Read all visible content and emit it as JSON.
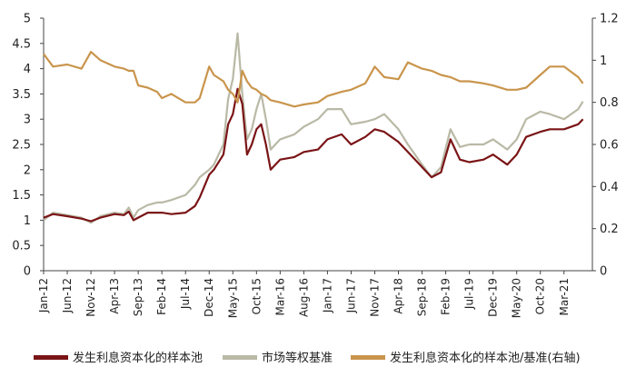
{
  "chart_data": {
    "type": "line",
    "axes": {
      "x_ticks": [
        "Jan-12",
        "Jun-12",
        "Nov-12",
        "Apr-13",
        "Sep-13",
        "Feb-14",
        "Jul-14",
        "Dec-14",
        "May-15",
        "Oct-15",
        "Mar-16",
        "Aug-16",
        "Jan-17",
        "Jun-17",
        "Nov-17",
        "Apr-18",
        "Sep-18",
        "Feb-19",
        "Jul-19",
        "Dec-19",
        "May-20",
        "Oct-20",
        "Mar-21"
      ],
      "y_left": {
        "ylim": [
          0,
          5
        ],
        "ticks": [
          "0",
          "0.5",
          "1",
          "1.5",
          "2",
          "2.5",
          "3",
          "3.5",
          "4",
          "4.5",
          "5"
        ]
      },
      "y_right": {
        "ylim": [
          0,
          1.2
        ],
        "ticks": [
          "0",
          "0.2",
          "0.4",
          "0.6",
          "0.8",
          "1",
          "1.2"
        ]
      },
      "grid": false
    },
    "legend_position": "bottom",
    "series": [
      {
        "name": "发生利息资本化的样本池",
        "axis": "left",
        "color": "#7a1416",
        "points": [
          [
            "Jan-12",
            1.05
          ],
          [
            "Mar-12",
            1.12
          ],
          [
            "Jun-12",
            1.08
          ],
          [
            "Sep-12",
            1.03
          ],
          [
            "Nov-12",
            0.98
          ],
          [
            "Jan-13",
            1.05
          ],
          [
            "Apr-13",
            1.12
          ],
          [
            "Jun-13",
            1.1
          ],
          [
            "Jul-13",
            1.17
          ],
          [
            "Aug-13",
            1.0
          ],
          [
            "Sep-13",
            1.05
          ],
          [
            "Nov-13",
            1.15
          ],
          [
            "Jan-14",
            1.15
          ],
          [
            "Feb-14",
            1.15
          ],
          [
            "Apr-14",
            1.12
          ],
          [
            "Jul-14",
            1.15
          ],
          [
            "Sep-14",
            1.28
          ],
          [
            "Oct-14",
            1.45
          ],
          [
            "Dec-14",
            1.9
          ],
          [
            "Jan-15",
            2.0
          ],
          [
            "Mar-15",
            2.3
          ],
          [
            "Apr-15",
            2.9
          ],
          [
            "May-15",
            3.1
          ],
          [
            "Jun-15",
            3.6
          ],
          [
            "Jul-15",
            3.3
          ],
          [
            "Aug-15",
            2.3
          ],
          [
            "Sep-15",
            2.5
          ],
          [
            "Oct-15",
            2.8
          ],
          [
            "Nov-15",
            2.9
          ],
          [
            "Dec-15",
            2.5
          ],
          [
            "Jan-16",
            2.0
          ],
          [
            "Mar-16",
            2.2
          ],
          [
            "Jun-16",
            2.25
          ],
          [
            "Aug-16",
            2.35
          ],
          [
            "Nov-16",
            2.4
          ],
          [
            "Jan-17",
            2.6
          ],
          [
            "Apr-17",
            2.7
          ],
          [
            "Jun-17",
            2.5
          ],
          [
            "Sep-17",
            2.65
          ],
          [
            "Nov-17",
            2.8
          ],
          [
            "Jan-18",
            2.75
          ],
          [
            "Apr-18",
            2.55
          ],
          [
            "Jun-18",
            2.35
          ],
          [
            "Sep-18",
            2.05
          ],
          [
            "Nov-18",
            1.85
          ],
          [
            "Jan-19",
            1.95
          ],
          [
            "Mar-19",
            2.6
          ],
          [
            "May-19",
            2.2
          ],
          [
            "Jul-19",
            2.15
          ],
          [
            "Oct-19",
            2.2
          ],
          [
            "Dec-19",
            2.3
          ],
          [
            "Mar-20",
            2.1
          ],
          [
            "May-20",
            2.3
          ],
          [
            "Jul-20",
            2.65
          ],
          [
            "Oct-20",
            2.75
          ],
          [
            "Dec-20",
            2.8
          ],
          [
            "Mar-21",
            2.8
          ],
          [
            "Jun-21",
            2.9
          ],
          [
            "Jul-21",
            3.0
          ]
        ]
      },
      {
        "name": "市场等权基准",
        "axis": "left",
        "color": "#b9b9a6",
        "points": [
          [
            "Jan-12",
            1.0
          ],
          [
            "Mar-12",
            1.15
          ],
          [
            "Jun-12",
            1.1
          ],
          [
            "Sep-12",
            1.05
          ],
          [
            "Nov-12",
            0.95
          ],
          [
            "Jan-13",
            1.08
          ],
          [
            "Apr-13",
            1.15
          ],
          [
            "Jun-13",
            1.12
          ],
          [
            "Jul-13",
            1.25
          ],
          [
            "Aug-13",
            1.05
          ],
          [
            "Sep-13",
            1.2
          ],
          [
            "Nov-13",
            1.3
          ],
          [
            "Jan-14",
            1.35
          ],
          [
            "Feb-14",
            1.35
          ],
          [
            "Apr-14",
            1.4
          ],
          [
            "Jul-14",
            1.5
          ],
          [
            "Sep-14",
            1.7
          ],
          [
            "Oct-14",
            1.85
          ],
          [
            "Dec-14",
            2.0
          ],
          [
            "Jan-15",
            2.1
          ],
          [
            "Mar-15",
            2.5
          ],
          [
            "Apr-15",
            3.4
          ],
          [
            "May-15",
            3.8
          ],
          [
            "Jun-15",
            4.7
          ],
          [
            "Jul-15",
            3.5
          ],
          [
            "Aug-15",
            2.6
          ],
          [
            "Sep-15",
            2.8
          ],
          [
            "Oct-15",
            3.2
          ],
          [
            "Nov-15",
            3.5
          ],
          [
            "Dec-15",
            3.0
          ],
          [
            "Jan-16",
            2.4
          ],
          [
            "Mar-16",
            2.6
          ],
          [
            "Jun-16",
            2.7
          ],
          [
            "Aug-16",
            2.85
          ],
          [
            "Nov-16",
            3.0
          ],
          [
            "Jan-17",
            3.2
          ],
          [
            "Apr-17",
            3.2
          ],
          [
            "Jun-17",
            2.9
          ],
          [
            "Sep-17",
            2.95
          ],
          [
            "Nov-17",
            3.0
          ],
          [
            "Jan-18",
            3.1
          ],
          [
            "Apr-18",
            2.8
          ],
          [
            "Jun-18",
            2.5
          ],
          [
            "Sep-18",
            2.1
          ],
          [
            "Nov-18",
            1.85
          ],
          [
            "Jan-19",
            2.05
          ],
          [
            "Mar-19",
            2.8
          ],
          [
            "May-19",
            2.45
          ],
          [
            "Jul-19",
            2.5
          ],
          [
            "Oct-19",
            2.5
          ],
          [
            "Dec-19",
            2.6
          ],
          [
            "Mar-20",
            2.4
          ],
          [
            "May-20",
            2.6
          ],
          [
            "Jul-20",
            3.0
          ],
          [
            "Oct-20",
            3.15
          ],
          [
            "Dec-20",
            3.1
          ],
          [
            "Mar-21",
            3.0
          ],
          [
            "Jun-21",
            3.2
          ],
          [
            "Jul-21",
            3.35
          ]
        ]
      },
      {
        "name": "发生利息资本化的样本池/基准(右轴)",
        "axis": "right",
        "color": "#c9954c",
        "points": [
          [
            "Jan-12",
            1.03
          ],
          [
            "Mar-12",
            0.97
          ],
          [
            "Jun-12",
            0.98
          ],
          [
            "Sep-12",
            0.96
          ],
          [
            "Nov-12",
            1.04
          ],
          [
            "Jan-13",
            1.0
          ],
          [
            "Apr-13",
            0.97
          ],
          [
            "Jun-13",
            0.96
          ],
          [
            "Jul-13",
            0.95
          ],
          [
            "Aug-13",
            0.95
          ],
          [
            "Sep-13",
            0.88
          ],
          [
            "Nov-13",
            0.87
          ],
          [
            "Jan-14",
            0.85
          ],
          [
            "Feb-14",
            0.82
          ],
          [
            "Apr-14",
            0.84
          ],
          [
            "Jul-14",
            0.8
          ],
          [
            "Sep-14",
            0.8
          ],
          [
            "Oct-14",
            0.82
          ],
          [
            "Dec-14",
            0.97
          ],
          [
            "Jan-15",
            0.93
          ],
          [
            "Mar-15",
            0.9
          ],
          [
            "Apr-15",
            0.86
          ],
          [
            "May-15",
            0.84
          ],
          [
            "Jun-15",
            0.8
          ],
          [
            "Jul-15",
            0.95
          ],
          [
            "Aug-15",
            0.9
          ],
          [
            "Sep-15",
            0.87
          ],
          [
            "Oct-15",
            0.86
          ],
          [
            "Nov-15",
            0.84
          ],
          [
            "Dec-15",
            0.83
          ],
          [
            "Jan-16",
            0.81
          ],
          [
            "Mar-16",
            0.8
          ],
          [
            "Jun-16",
            0.78
          ],
          [
            "Aug-16",
            0.79
          ],
          [
            "Nov-16",
            0.8
          ],
          [
            "Jan-17",
            0.83
          ],
          [
            "Apr-17",
            0.85
          ],
          [
            "Jun-17",
            0.86
          ],
          [
            "Sep-17",
            0.89
          ],
          [
            "Nov-17",
            0.97
          ],
          [
            "Jan-18",
            0.92
          ],
          [
            "Apr-18",
            0.91
          ],
          [
            "Jun-18",
            0.99
          ],
          [
            "Sep-18",
            0.96
          ],
          [
            "Nov-18",
            0.95
          ],
          [
            "Jan-19",
            0.93
          ],
          [
            "Mar-19",
            0.92
          ],
          [
            "May-19",
            0.9
          ],
          [
            "Jul-19",
            0.9
          ],
          [
            "Oct-19",
            0.89
          ],
          [
            "Dec-19",
            0.88
          ],
          [
            "Mar-20",
            0.86
          ],
          [
            "May-20",
            0.86
          ],
          [
            "Jul-20",
            0.87
          ],
          [
            "Oct-20",
            0.93
          ],
          [
            "Dec-20",
            0.97
          ],
          [
            "Mar-21",
            0.97
          ],
          [
            "Jun-21",
            0.92
          ],
          [
            "Jul-21",
            0.89
          ]
        ]
      }
    ]
  }
}
